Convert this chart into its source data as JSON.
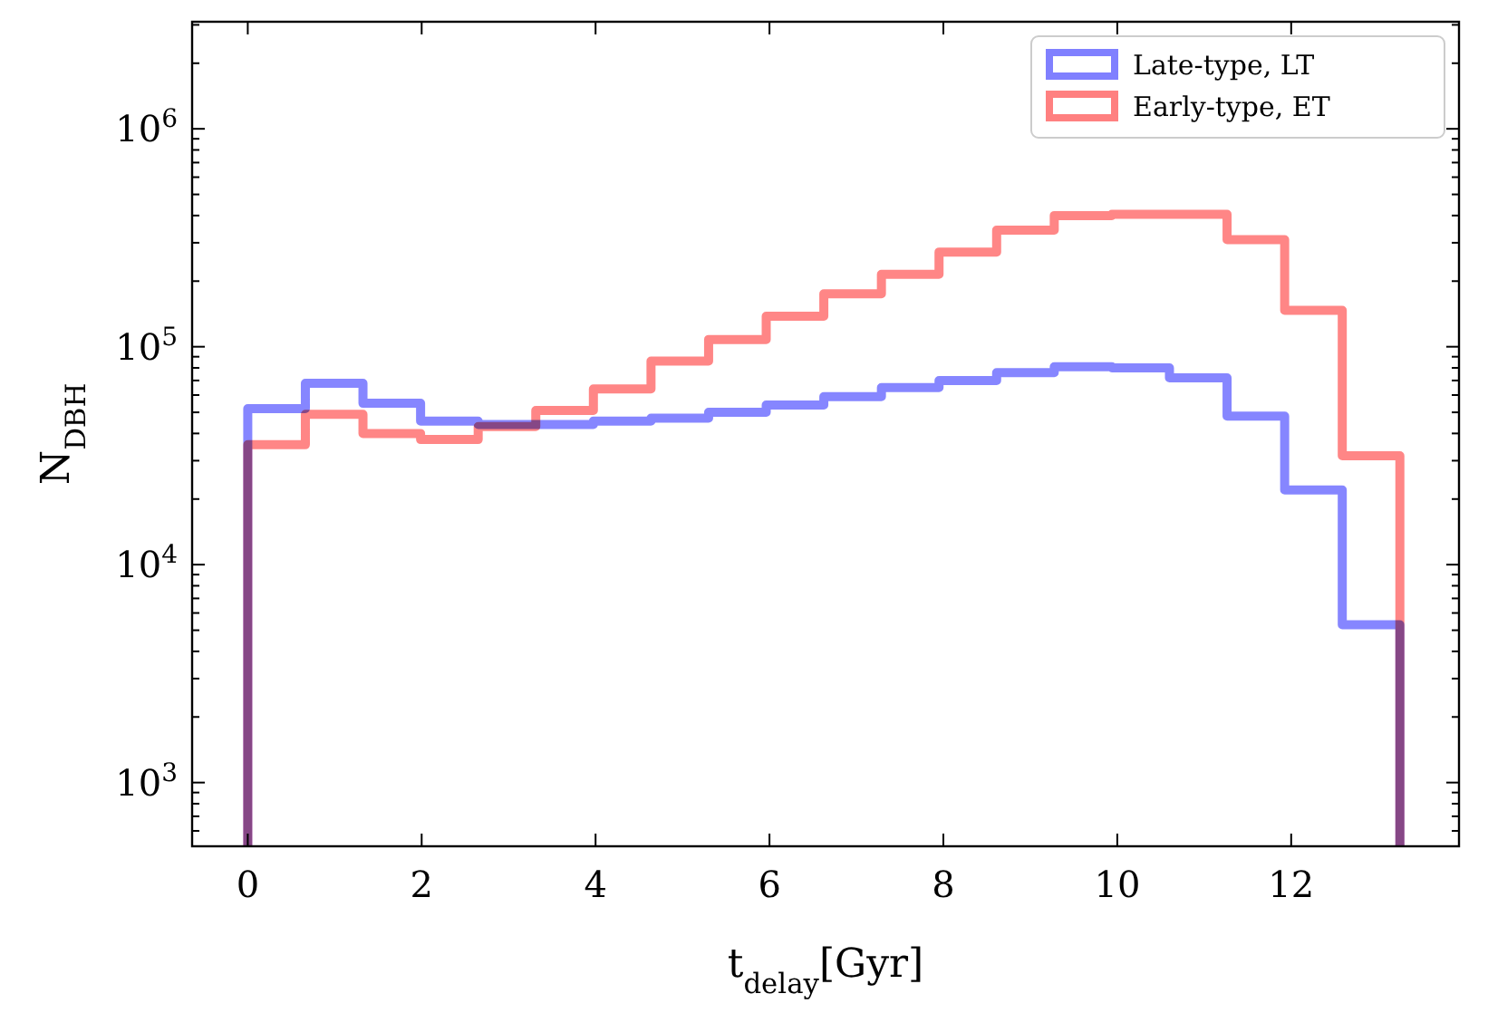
{
  "chart_data": {
    "type": "histogram",
    "xlabel": "t$_{delay}$[Gyr]",
    "ylabel": "N$_{DBH}$",
    "bins": [
      0,
      0.6625,
      1.325,
      1.9875,
      2.65,
      3.3125,
      3.975,
      4.6375,
      5.3,
      5.9625,
      6.625,
      7.2875,
      7.95,
      8.6125,
      9.275,
      9.9375,
      10.6,
      11.2625,
      11.925,
      12.5875,
      13.25
    ],
    "series": [
      {
        "name": "Late-type, LT",
        "color": "#8080ff",
        "values": [
          52000,
          68000,
          55000,
          45600,
          44000,
          44000,
          45600,
          47000,
          50000,
          54000,
          59000,
          65000,
          70000,
          76000,
          81000,
          80000,
          72000,
          48000,
          22000,
          5300
        ]
      },
      {
        "name": "Early-type, ET",
        "color": "#ff8080",
        "values": [
          35500,
          49000,
          40000,
          37500,
          43000,
          51000,
          64000,
          86000,
          108000,
          138000,
          175000,
          215000,
          272000,
          343000,
          400000,
          405000,
          405000,
          310000,
          147000,
          31600
        ]
      }
    ],
    "log": "y",
    "xlim": [
      -0.64,
      13.93
    ],
    "ylim": [
      510,
      3100000
    ],
    "xticks": [
      0,
      2,
      4,
      6,
      8,
      10,
      12
    ],
    "yticks": [
      {
        "value": 1000,
        "label": "10$^{3}$"
      },
      {
        "value": 10000,
        "label": "10$^{4}$"
      },
      {
        "value": 100000,
        "label": "10$^{5}$"
      },
      {
        "value": 1000000,
        "label": "10$^{6}$"
      },
      {
        "value": 600,
        "label": null
      },
      {
        "value": 700,
        "label": null
      },
      {
        "value": 800,
        "label": null
      },
      {
        "value": 900,
        "label": null
      },
      {
        "value": 2000,
        "label": null
      },
      {
        "value": 3000,
        "label": null
      },
      {
        "value": 4000,
        "label": null
      },
      {
        "value": 5000,
        "label": null
      },
      {
        "value": 6000,
        "label": null
      },
      {
        "value": 7000,
        "label": null
      },
      {
        "value": 8000,
        "label": null
      },
      {
        "value": 9000,
        "label": null
      },
      {
        "value": 20000,
        "label": null
      },
      {
        "value": 30000,
        "label": null
      },
      {
        "value": 40000,
        "label": null
      },
      {
        "value": 50000,
        "label": null
      },
      {
        "value": 60000,
        "label": null
      },
      {
        "value": 70000,
        "label": null
      },
      {
        "value": 80000,
        "label": null
      },
      {
        "value": 90000,
        "label": null
      },
      {
        "value": 200000,
        "label": null
      },
      {
        "value": 300000,
        "label": null
      },
      {
        "value": 400000,
        "label": null
      },
      {
        "value": 500000,
        "label": null
      },
      {
        "value": 600000,
        "label": null
      },
      {
        "value": 700000,
        "label": null
      },
      {
        "value": 800000,
        "label": null
      },
      {
        "value": 900000,
        "label": null
      },
      {
        "value": 2000000,
        "label": null
      },
      {
        "value": 3000000,
        "label": null
      }
    ],
    "legend": "top right"
  }
}
